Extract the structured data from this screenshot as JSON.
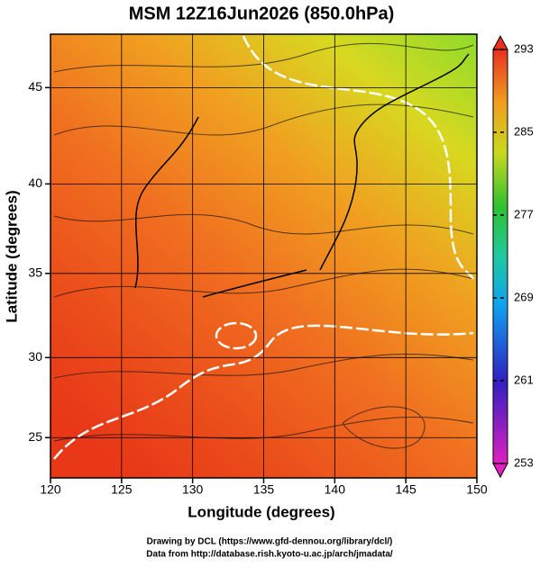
{
  "chart_data": {
    "type": "streamline",
    "title": "MSM 12Z16Jun2026 (850.0hPa)",
    "x_label": "Longitude (degrees)",
    "y_label": "Latitude  (degrees)",
    "xlim": [
      120,
      150
    ],
    "xticks": [
      120,
      125,
      130,
      135,
      140,
      145,
      150
    ],
    "ylim": [
      22.4,
      47.6
    ],
    "yticks": [
      25,
      30,
      35,
      40,
      45
    ],
    "grid": true,
    "colorbar": {
      "lim": [
        253,
        293
      ],
      "ticks": [
        253,
        261,
        269,
        277,
        285,
        293
      ]
    },
    "footer": [
      "Drawing by DCL (https://www.gfd-dennou.org/library/dcl/)",
      "Data from http://database.rish.kyoto-u.ac.jp/arch/jmadata/"
    ]
  }
}
